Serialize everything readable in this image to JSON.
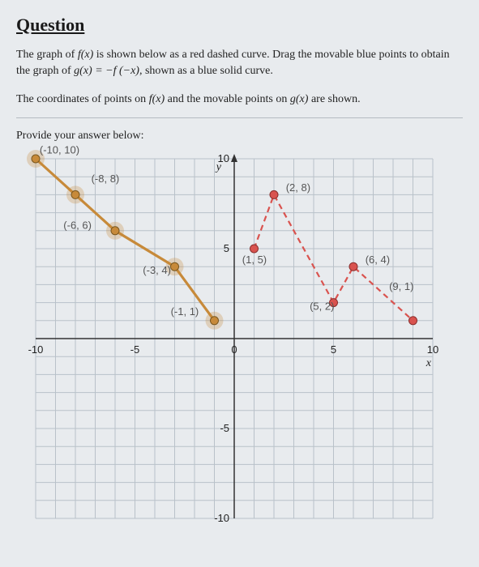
{
  "title": "Question",
  "para1_a": "The graph of ",
  "para1_fx": "f(x)",
  "para1_b": " is shown below as a red dashed curve. Drag the movable blue points to obtain the graph of ",
  "para1_gx": "g(x) = −f (−x)",
  "para1_c": ", shown as a blue solid curve.",
  "para2_a": "The coordinates of points on ",
  "para2_fx": "f(x)",
  "para2_b": " and the movable points on ",
  "para2_gx": "g(x)",
  "para2_c": " are shown.",
  "provide": "Provide your answer below:",
  "chart": {
    "xlim": [
      -10,
      10
    ],
    "ylim": [
      -10,
      10
    ],
    "xtick_step": 5,
    "ytick_step": 5,
    "x_minor_step": 1,
    "y_minor_step": 1,
    "x_axis_label": "x",
    "y_axis_label": "y",
    "x_axis_num_labels": [
      "-10",
      "-5",
      "0",
      "5",
      "10"
    ],
    "y_axis_num_labels": [
      "-10",
      "-5",
      "5",
      "10"
    ],
    "background": "#e8ebee",
    "grid_color": "#b9c1c9",
    "axis_color": "#333333",
    "red_curve": {
      "color": "#d9534f",
      "dash": "7 5",
      "width": 2.2,
      "points": [
        [
          1,
          5
        ],
        [
          2,
          8
        ],
        [
          5,
          2
        ],
        [
          6,
          4
        ],
        [
          9,
          1
        ]
      ]
    },
    "blue_curve": {
      "color": "#c78a3a",
      "width": 3.2,
      "points": [
        [
          -10,
          10
        ],
        [
          -8,
          8
        ],
        [
          -6,
          6
        ],
        [
          -3,
          4
        ],
        [
          -1,
          1
        ]
      ]
    },
    "blue_draggable_points": [
      {
        "xy": [
          -10,
          10
        ],
        "label": "(-10, 10)",
        "lx": -9.8,
        "ly": 10.3
      },
      {
        "xy": [
          -8,
          8
        ],
        "label": "(-8, 8)",
        "lx": -7.2,
        "ly": 8.7
      },
      {
        "xy": [
          -6,
          6
        ],
        "label": "(-6, 6)",
        "lx": -8.6,
        "ly": 6.1
      },
      {
        "xy": [
          -3,
          4
        ],
        "label": "(-3, 4)",
        "lx": -4.6,
        "ly": 3.6
      },
      {
        "xy": [
          -1,
          1
        ],
        "label": "(-1, 1)",
        "lx": -3.2,
        "ly": 1.3
      }
    ],
    "red_points": [
      {
        "xy": [
          1,
          5
        ],
        "label": "(1, 5)",
        "lx": 0.4,
        "ly": 4.2
      },
      {
        "xy": [
          2,
          8
        ],
        "label": "(2, 8)",
        "lx": 2.6,
        "ly": 8.2
      },
      {
        "xy": [
          5,
          2
        ],
        "label": "(5, 2)",
        "lx": 3.8,
        "ly": 1.6
      },
      {
        "xy": [
          6,
          4
        ],
        "label": "(6, 4)",
        "lx": 6.6,
        "ly": 4.2
      },
      {
        "xy": [
          9,
          1
        ],
        "label": "(9, 1)",
        "lx": 7.8,
        "ly": 2.7
      }
    ],
    "point_radius": 5,
    "halo_radius": 11,
    "label_fontsize": 13,
    "label_color": "#555555"
  }
}
